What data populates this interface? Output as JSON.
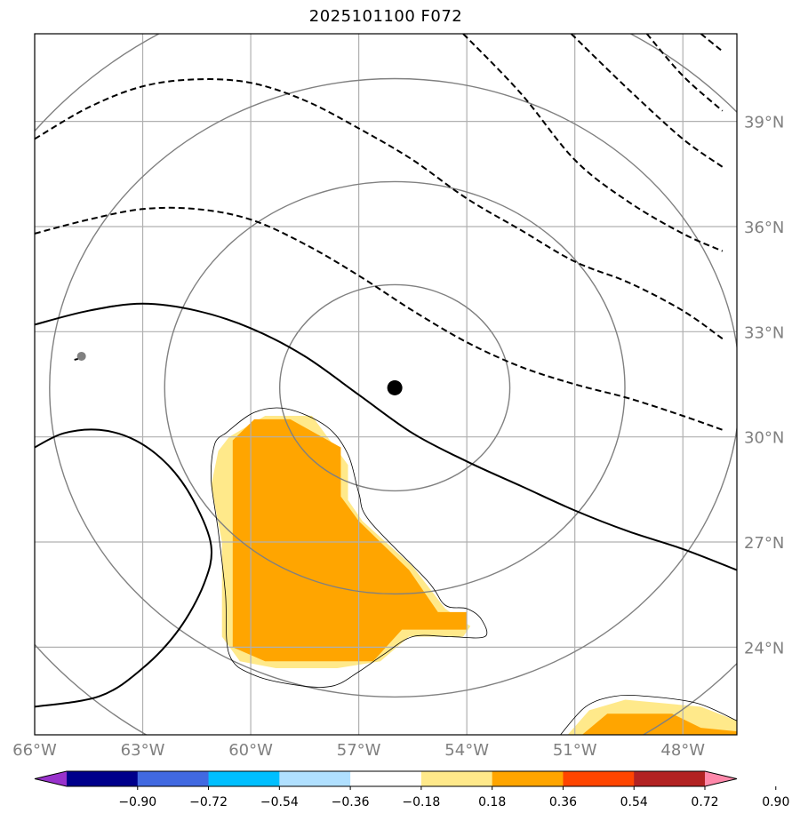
{
  "chart_data": {
    "type": "heatmap",
    "title": "2025101100 F072",
    "xlim": [
      -66,
      -46.5
    ],
    "ylim": [
      21.5,
      41.5
    ],
    "x_ticks": [
      {
        "value": -66,
        "label": "66°W"
      },
      {
        "value": -63,
        "label": "63°W"
      },
      {
        "value": -60,
        "label": "60°W"
      },
      {
        "value": -57,
        "label": "57°W"
      },
      {
        "value": -54,
        "label": "54°W"
      },
      {
        "value": -51,
        "label": "51°W"
      },
      {
        "value": -48,
        "label": "48°W"
      }
    ],
    "y_ticks": [
      {
        "value": 24,
        "label": "24°N"
      },
      {
        "value": 27,
        "label": "27°N"
      },
      {
        "value": 30,
        "label": "30°N"
      },
      {
        "value": 33,
        "label": "33°N"
      },
      {
        "value": 36,
        "label": "36°N"
      },
      {
        "value": 39,
        "label": "39°N"
      }
    ],
    "grid": true,
    "center": {
      "lon": -56.0,
      "lat": 31.4
    },
    "range_rings_deg": [
      3,
      6,
      9,
      12
    ],
    "small_marker": {
      "lon": -64.7,
      "lat": 32.3
    },
    "colorbar": {
      "levels": [
        "−0.90",
        "−0.72",
        "−0.54",
        "−0.36",
        "−0.18",
        "0.18",
        "0.36",
        "0.54",
        "0.72",
        "0.90"
      ],
      "colors": [
        "#9932cc",
        "#00008b",
        "#4169e1",
        "#00bfff",
        "#b0e0ff",
        "#ffffff",
        "#ffe98a",
        "#ffa500",
        "#ff4500",
        "#b22222",
        "#ff88aa"
      ]
    },
    "shaded_regions": [
      {
        "level": "0.18–0.36",
        "color": "#ffe98a",
        "points": [
          [
            -60.6,
            30
          ],
          [
            -59.6,
            30.6
          ],
          [
            -58.3,
            30.6
          ],
          [
            -57.3,
            29.2
          ],
          [
            -57.3,
            28.2
          ],
          [
            -56.9,
            27.6
          ],
          [
            -55.5,
            26.3
          ],
          [
            -54.6,
            25.1
          ],
          [
            -53.9,
            24.6
          ],
          [
            -54.1,
            24.3
          ],
          [
            -55.6,
            24.3
          ],
          [
            -56.4,
            23.6
          ],
          [
            -57.6,
            23.4
          ],
          [
            -59.3,
            23.4
          ],
          [
            -60.3,
            23.6
          ],
          [
            -60.8,
            24.3
          ],
          [
            -60.8,
            27.0
          ],
          [
            -61.1,
            28.6
          ],
          [
            -60.9,
            29.6
          ]
        ]
      },
      {
        "level": "0.36–0.54",
        "color": "#ffa500",
        "points": [
          [
            -60.5,
            29.9
          ],
          [
            -59.9,
            30.5
          ],
          [
            -58.9,
            30.5
          ],
          [
            -57.5,
            29.7
          ],
          [
            -57.5,
            28.3
          ],
          [
            -57.0,
            27.6
          ],
          [
            -55.6,
            26.2
          ],
          [
            -54.8,
            25.0
          ],
          [
            -54.0,
            25.0
          ],
          [
            -54.0,
            24.5
          ],
          [
            -55.8,
            24.5
          ],
          [
            -56.6,
            23.6
          ],
          [
            -59.6,
            23.6
          ],
          [
            -60.5,
            24.0
          ],
          [
            -60.5,
            30.0
          ]
        ]
      },
      {
        "level": "0.18–0.36",
        "color": "#ffe98a",
        "points": [
          [
            -51.2,
            21.5
          ],
          [
            -50.6,
            22.2
          ],
          [
            -49.6,
            22.5
          ],
          [
            -47.5,
            22.3
          ],
          [
            -46.5,
            21.9
          ],
          [
            -46.5,
            21.5
          ]
        ]
      },
      {
        "level": "0.36–0.54",
        "color": "#ffa500",
        "points": [
          [
            -50.8,
            21.5
          ],
          [
            -50.1,
            22.1
          ],
          [
            -48.3,
            22.1
          ],
          [
            -47.5,
            21.7
          ],
          [
            -46.5,
            21.6
          ],
          [
            -46.5,
            21.5
          ]
        ]
      }
    ],
    "thin_contours": [
      [
        [
          -60.7,
          30.1
        ],
        [
          -59.9,
          30.7
        ],
        [
          -59.0,
          30.8
        ],
        [
          -57.9,
          30.3
        ],
        [
          -57.3,
          29.5
        ],
        [
          -57.0,
          28.4
        ],
        [
          -56.7,
          27.6
        ],
        [
          -55.1,
          25.9
        ],
        [
          -54.6,
          25.2
        ],
        [
          -54.0,
          25.1
        ],
        [
          -53.6,
          24.8
        ],
        [
          -53.5,
          24.3
        ],
        [
          -54.5,
          24.3
        ],
        [
          -55.5,
          24.3
        ],
        [
          -56.3,
          23.8
        ],
        [
          -57.0,
          23.3
        ],
        [
          -57.7,
          22.9
        ],
        [
          -58.6,
          22.9
        ],
        [
          -59.9,
          23.2
        ],
        [
          -60.6,
          23.8
        ],
        [
          -60.7,
          25.5
        ],
        [
          -60.9,
          27.3
        ],
        [
          -61.1,
          28.8
        ],
        [
          -61.0,
          29.8
        ],
        [
          -60.7,
          30.1
        ]
      ],
      [
        [
          -51.4,
          21.5
        ],
        [
          -50.7,
          22.3
        ],
        [
          -49.9,
          22.6
        ],
        [
          -49.0,
          22.6
        ],
        [
          -47.6,
          22.4
        ],
        [
          -46.5,
          21.9
        ]
      ]
    ],
    "thick_contours": [
      [
        [
          -66,
          33.2
        ],
        [
          -64.5,
          33.6
        ],
        [
          -63,
          33.8
        ],
        [
          -61.5,
          33.6
        ],
        [
          -60,
          33.1
        ],
        [
          -58.5,
          32.3
        ],
        [
          -57,
          31.2
        ],
        [
          -55.5,
          30.1
        ],
        [
          -54,
          29.3
        ],
        [
          -52.5,
          28.6
        ],
        [
          -51,
          27.9
        ],
        [
          -49.5,
          27.3
        ],
        [
          -48,
          26.8
        ],
        [
          -46.5,
          26.2
        ]
      ],
      [
        [
          -66,
          29.7
        ],
        [
          -65.2,
          30.1
        ],
        [
          -64.2,
          30.2
        ],
        [
          -63.2,
          29.9
        ],
        [
          -62.3,
          29.2
        ],
        [
          -61.6,
          28.2
        ],
        [
          -61.1,
          26.9
        ],
        [
          -61.3,
          25.8
        ],
        [
          -62,
          24.5
        ],
        [
          -63,
          23.4
        ],
        [
          -64.2,
          22.6
        ],
        [
          -66,
          22.3
        ]
      ]
    ],
    "dashed_contours": [
      [
        [
          -66,
          35.8
        ],
        [
          -64.5,
          36.2
        ],
        [
          -63,
          36.5
        ],
        [
          -61.5,
          36.5
        ],
        [
          -60,
          36.2
        ],
        [
          -58.5,
          35.5
        ],
        [
          -57,
          34.6
        ],
        [
          -55.5,
          33.6
        ],
        [
          -54,
          32.7
        ],
        [
          -52.5,
          32.0
        ],
        [
          -51,
          31.5
        ],
        [
          -49.5,
          31.1
        ],
        [
          -48,
          30.6
        ],
        [
          -46.9,
          30.2
        ]
      ],
      [
        [
          -66,
          38.5
        ],
        [
          -64.5,
          39.4
        ],
        [
          -63,
          40.0
        ],
        [
          -61.5,
          40.2
        ],
        [
          -60,
          40.1
        ],
        [
          -58.5,
          39.6
        ],
        [
          -57,
          38.8
        ],
        [
          -55.5,
          37.9
        ],
        [
          -54,
          36.8
        ],
        [
          -52.5,
          35.9
        ],
        [
          -51,
          35.0
        ],
        [
          -49.5,
          34.4
        ],
        [
          -48,
          33.6
        ],
        [
          -46.9,
          32.8
        ]
      ],
      [
        [
          -54.1,
          41.5
        ],
        [
          -52.5,
          39.8
        ],
        [
          -51,
          37.9
        ],
        [
          -49.5,
          36.7
        ],
        [
          -48,
          35.8
        ],
        [
          -46.9,
          35.3
        ]
      ],
      [
        [
          -51.1,
          41.5
        ],
        [
          -49.5,
          39.9
        ],
        [
          -48,
          38.5
        ],
        [
          -46.9,
          37.7
        ]
      ],
      [
        [
          -49,
          41.5
        ],
        [
          -48,
          40.3
        ],
        [
          -46.9,
          39.3
        ]
      ],
      [
        [
          -47.5,
          41.5
        ],
        [
          -46.9,
          41.0
        ]
      ]
    ]
  }
}
